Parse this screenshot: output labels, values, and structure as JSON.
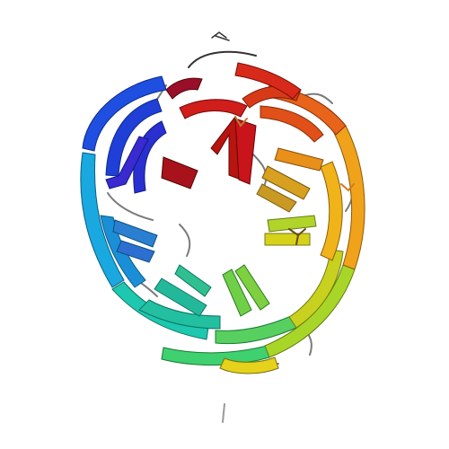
{
  "image": {
    "kind": "protein-cartoon-render",
    "background": "#ffffff",
    "coloring": "rainbow-n-to-c",
    "palette": [
      "#1f2fd6",
      "#1f6fe0",
      "#1aa8d8",
      "#1ec8a8",
      "#3fd06a",
      "#9ad62a",
      "#e6d21a",
      "#f0a21a",
      "#e8641a",
      "#d81e1a",
      "#a8121a"
    ]
  }
}
